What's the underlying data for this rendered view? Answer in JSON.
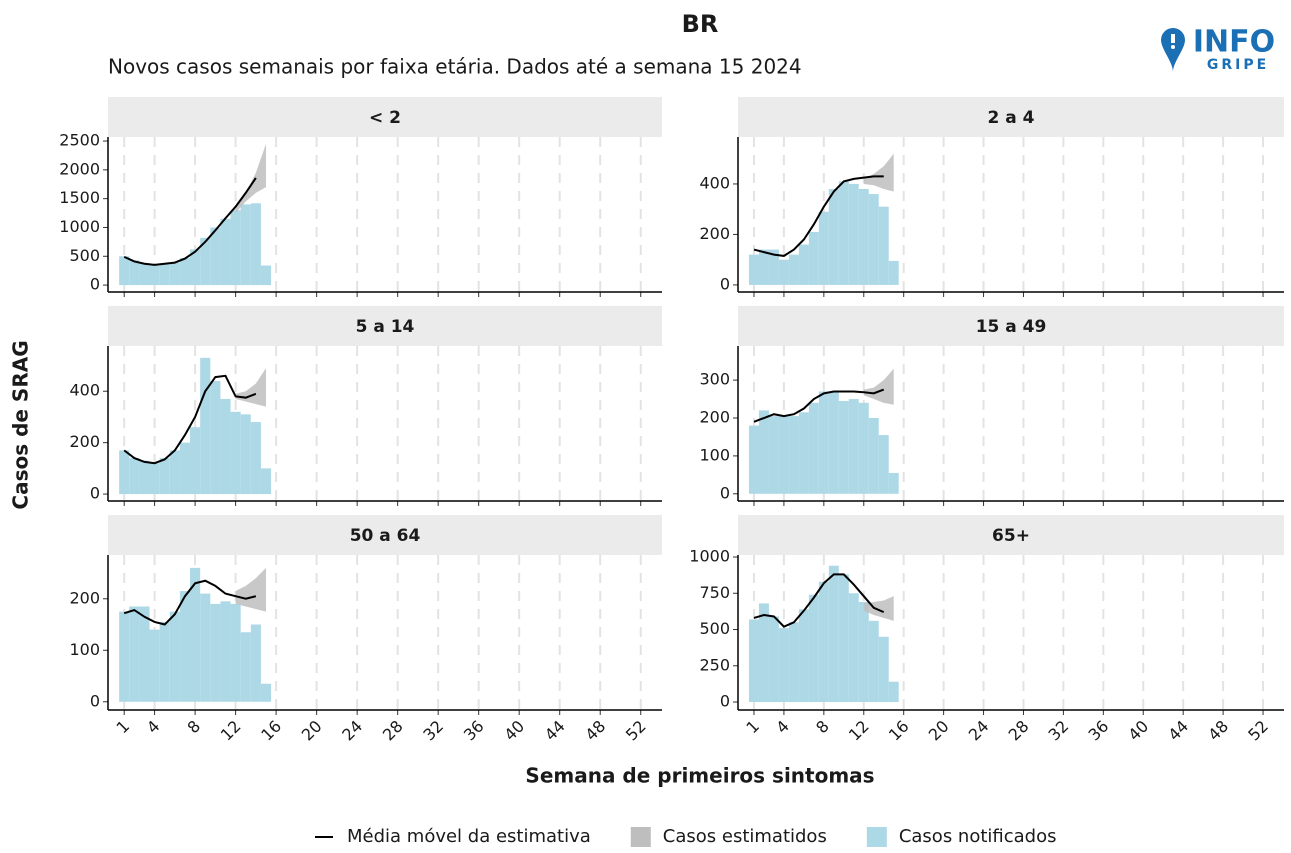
{
  "figure": {
    "title": "BR",
    "subtitle": "Novos casos semanais por faixa etária. Dados até a semana 15 2024",
    "logo": {
      "line1": "INFO",
      "line2": "GRIPE"
    },
    "x_label": "Semana de primeiros sintomas",
    "y_label": "Casos de SRAG"
  },
  "chart_data": [
    {
      "type": "bar",
      "title": "< 2",
      "xlim": [
        -0.6,
        54.1
      ],
      "xticks": [
        1,
        4,
        8,
        12,
        16,
        20,
        24,
        28,
        32,
        36,
        40,
        44,
        48,
        52
      ],
      "ylim": [
        -120,
        2570
      ],
      "yticks": [
        0,
        500,
        1000,
        1500,
        2000,
        2500
      ],
      "series": [
        {
          "name": "Média móvel da estimativa",
          "type": "line",
          "color": "#000000",
          "x": [
            1,
            2,
            3,
            4,
            5,
            6,
            7,
            8,
            9,
            10,
            11,
            12,
            13,
            14
          ],
          "values": [
            490,
            410,
            370,
            350,
            370,
            390,
            460,
            580,
            750,
            950,
            1160,
            1360,
            1600,
            1860
          ]
        },
        {
          "name": "Casos estimatidos",
          "type": "band",
          "color": "#bebebe",
          "x": [
            12,
            13,
            14,
            15
          ],
          "lower": [
            1250,
            1450,
            1600,
            1700
          ],
          "upper": [
            1320,
            1600,
            1950,
            2450
          ]
        },
        {
          "name": "Casos notificados",
          "type": "bar",
          "color": "#add8e6",
          "x": [
            1,
            2,
            3,
            4,
            5,
            6,
            7,
            8,
            9,
            10,
            11,
            12,
            13,
            14,
            15
          ],
          "values": [
            500,
            430,
            380,
            340,
            360,
            390,
            470,
            620,
            820,
            1000,
            1150,
            1300,
            1400,
            1420,
            340
          ]
        }
      ]
    },
    {
      "type": "bar",
      "title": "2 a 4",
      "xlim": [
        -0.6,
        54.1
      ],
      "xticks": [
        1,
        4,
        8,
        12,
        16,
        20,
        24,
        28,
        32,
        36,
        40,
        44,
        48,
        52
      ],
      "ylim": [
        -28,
        586
      ],
      "yticks": [
        0,
        200,
        400
      ],
      "series": [
        {
          "name": "Média móvel da estimativa",
          "type": "line",
          "color": "#000000",
          "x": [
            1,
            2,
            3,
            4,
            5,
            6,
            7,
            8,
            9,
            10,
            11,
            12,
            13,
            14
          ],
          "values": [
            140,
            130,
            120,
            115,
            140,
            180,
            240,
            310,
            370,
            410,
            420,
            425,
            430,
            430
          ]
        },
        {
          "name": "Casos estimatidos",
          "type": "band",
          "color": "#bebebe",
          "x": [
            12,
            13,
            14,
            15
          ],
          "lower": [
            400,
            395,
            380,
            370
          ],
          "upper": [
            420,
            440,
            470,
            520
          ]
        },
        {
          "name": "Casos notificados",
          "type": "bar",
          "color": "#add8e6",
          "x": [
            1,
            2,
            3,
            4,
            5,
            6,
            7,
            8,
            9,
            10,
            11,
            12,
            13,
            14,
            15
          ],
          "values": [
            120,
            140,
            140,
            100,
            120,
            160,
            210,
            290,
            380,
            410,
            400,
            380,
            360,
            310,
            95
          ]
        }
      ]
    },
    {
      "type": "bar",
      "title": "5 a 14",
      "xlim": [
        -0.6,
        54.1
      ],
      "xticks": [
        1,
        4,
        8,
        12,
        16,
        20,
        24,
        28,
        32,
        36,
        40,
        44,
        48,
        52
      ],
      "ylim": [
        -27,
        576
      ],
      "yticks": [
        0,
        200,
        400
      ],
      "series": [
        {
          "name": "Média móvel da estimativa",
          "type": "line",
          "color": "#000000",
          "x": [
            1,
            2,
            3,
            4,
            5,
            6,
            7,
            8,
            9,
            10,
            11,
            12,
            13,
            14
          ],
          "values": [
            170,
            140,
            125,
            120,
            135,
            170,
            230,
            300,
            400,
            455,
            460,
            380,
            375,
            390
          ]
        },
        {
          "name": "Casos estimatidos",
          "type": "band",
          "color": "#bebebe",
          "x": [
            12,
            13,
            14,
            15
          ],
          "lower": [
            370,
            360,
            350,
            340
          ],
          "upper": [
            390,
            400,
            430,
            490
          ]
        },
        {
          "name": "Casos notificados",
          "type": "bar",
          "color": "#add8e6",
          "x": [
            1,
            2,
            3,
            4,
            5,
            6,
            7,
            8,
            9,
            10,
            11,
            12,
            13,
            14,
            15
          ],
          "values": [
            170,
            140,
            130,
            120,
            140,
            170,
            200,
            260,
            530,
            440,
            370,
            320,
            310,
            280,
            100
          ]
        }
      ]
    },
    {
      "type": "bar",
      "title": "15 a 49",
      "xlim": [
        -0.6,
        54.1
      ],
      "xticks": [
        1,
        4,
        8,
        12,
        16,
        20,
        24,
        28,
        32,
        36,
        40,
        44,
        48,
        52
      ],
      "ylim": [
        -19,
        390
      ],
      "yticks": [
        0,
        100,
        200,
        300
      ],
      "series": [
        {
          "name": "Média móvel da estimativa",
          "type": "line",
          "color": "#000000",
          "x": [
            1,
            2,
            3,
            4,
            5,
            6,
            7,
            8,
            9,
            10,
            11,
            12,
            13,
            14
          ],
          "values": [
            190,
            200,
            210,
            205,
            210,
            225,
            250,
            265,
            270,
            270,
            270,
            268,
            265,
            275
          ]
        },
        {
          "name": "Casos estimatidos",
          "type": "band",
          "color": "#bebebe",
          "x": [
            12,
            13,
            14,
            15
          ],
          "lower": [
            260,
            250,
            240,
            235
          ],
          "upper": [
            275,
            280,
            300,
            330
          ]
        },
        {
          "name": "Casos notificados",
          "type": "bar",
          "color": "#add8e6",
          "x": [
            1,
            2,
            3,
            4,
            5,
            6,
            7,
            8,
            9,
            10,
            11,
            12,
            13,
            14,
            15
          ],
          "values": [
            180,
            220,
            205,
            205,
            205,
            215,
            240,
            270,
            270,
            245,
            250,
            240,
            200,
            155,
            55
          ]
        }
      ]
    },
    {
      "type": "bar",
      "title": "50 a 64",
      "xlim": [
        -0.6,
        54.1
      ],
      "xticks": [
        1,
        4,
        8,
        12,
        16,
        20,
        24,
        28,
        32,
        36,
        40,
        44,
        48,
        52
      ],
      "ylim": [
        -16,
        285
      ],
      "yticks": [
        0,
        100,
        200
      ],
      "series": [
        {
          "name": "Média móvel da estimativa",
          "type": "line",
          "color": "#000000",
          "x": [
            1,
            2,
            3,
            4,
            5,
            6,
            7,
            8,
            9,
            10,
            11,
            12,
            13,
            14
          ],
          "values": [
            172,
            178,
            165,
            155,
            150,
            170,
            205,
            230,
            235,
            225,
            210,
            205,
            200,
            205
          ]
        },
        {
          "name": "Casos estimatidos",
          "type": "band",
          "color": "#bebebe",
          "x": [
            12,
            13,
            14,
            15
          ],
          "lower": [
            190,
            185,
            180,
            175
          ],
          "upper": [
            215,
            225,
            240,
            260
          ]
        },
        {
          "name": "Casos notificados",
          "type": "bar",
          "color": "#add8e6",
          "x": [
            1,
            2,
            3,
            4,
            5,
            6,
            7,
            8,
            9,
            10,
            11,
            12,
            13,
            14,
            15
          ],
          "values": [
            175,
            185,
            185,
            140,
            155,
            175,
            215,
            260,
            210,
            190,
            195,
            190,
            135,
            150,
            35
          ]
        }
      ]
    },
    {
      "type": "bar",
      "title": "65+",
      "xlim": [
        -0.6,
        54.1
      ],
      "xticks": [
        1,
        4,
        8,
        12,
        16,
        20,
        24,
        28,
        32,
        36,
        40,
        44,
        48,
        52
      ],
      "ylim": [
        -55,
        1014
      ],
      "yticks": [
        0,
        250,
        500,
        750,
        1000
      ],
      "series": [
        {
          "name": "Média móvel da estimativa",
          "type": "line",
          "color": "#000000",
          "x": [
            1,
            2,
            3,
            4,
            5,
            6,
            7,
            8,
            9,
            10,
            11,
            12,
            13,
            14
          ],
          "values": [
            580,
            600,
            590,
            520,
            550,
            630,
            720,
            820,
            880,
            880,
            810,
            730,
            650,
            620
          ]
        },
        {
          "name": "Casos estimatidos",
          "type": "band",
          "color": "#bebebe",
          "x": [
            12,
            13,
            14,
            15
          ],
          "lower": [
            630,
            600,
            580,
            560
          ],
          "upper": [
            680,
            690,
            700,
            730
          ]
        },
        {
          "name": "Casos notificados",
          "type": "bar",
          "color": "#add8e6",
          "x": [
            1,
            2,
            3,
            4,
            5,
            6,
            7,
            8,
            9,
            10,
            11,
            12,
            13,
            14,
            15
          ],
          "values": [
            570,
            680,
            590,
            510,
            550,
            640,
            740,
            830,
            940,
            880,
            750,
            690,
            560,
            450,
            140
          ]
        }
      ]
    }
  ]
}
